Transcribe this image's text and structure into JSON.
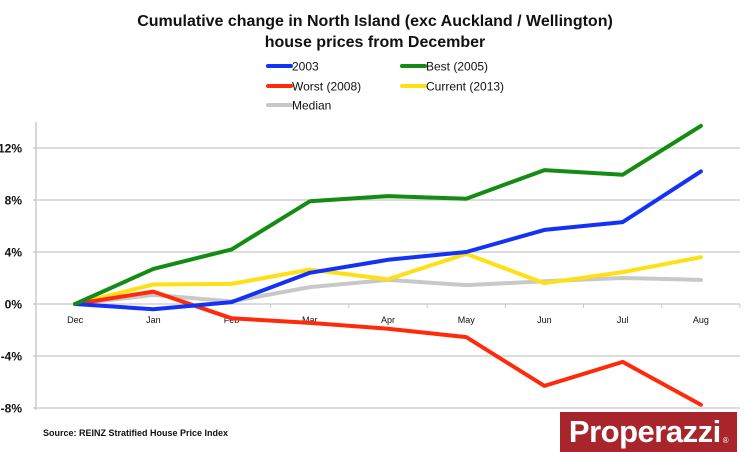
{
  "chart_data": {
    "type": "line",
    "title": [
      "Cumulative change in North Island (exc Auckland / Wellington)",
      "house prices from December"
    ],
    "xlabel": "",
    "ylabel": "",
    "categories": [
      "Dec",
      "Jan",
      "Feb",
      "Mar",
      "Apr",
      "May",
      "Jun",
      "Jul",
      "Aug"
    ],
    "ylim": [
      -8,
      14
    ],
    "yticks": [
      -8,
      -4,
      0,
      4,
      8,
      12
    ],
    "ytick_labels": [
      "-8%",
      "-4%",
      "0%",
      "4%",
      "8%",
      "12%"
    ],
    "grid": true,
    "legend_position": "top-center",
    "series": [
      {
        "name": "2003",
        "color": "#1432f5",
        "values": [
          0,
          -0.4,
          0.15,
          2.4,
          3.4,
          4.0,
          5.7,
          6.3,
          10.2
        ]
      },
      {
        "name": "Best (2005)",
        "color": "#148c14",
        "values": [
          0,
          2.7,
          4.2,
          7.9,
          8.3,
          8.1,
          10.3,
          9.95,
          13.7
        ]
      },
      {
        "name": "Worst (2008)",
        "color": "#ff2a0a",
        "values": [
          0,
          0.95,
          -1.1,
          -1.45,
          -1.9,
          -2.55,
          -6.3,
          -4.45,
          -7.75
        ]
      },
      {
        "name": "Current (2013)",
        "color": "#ffe014",
        "values": [
          0,
          1.5,
          1.55,
          2.65,
          1.9,
          3.85,
          1.6,
          2.45,
          3.6
        ]
      },
      {
        "name": "Median",
        "color": "#c8c8c8",
        "values": [
          0,
          0.7,
          0.2,
          1.3,
          1.85,
          1.45,
          1.75,
          2.0,
          1.85
        ]
      }
    ],
    "source": "Source: REINZ Stratified House Price Index"
  },
  "branding": {
    "logo_text": "Properazzi",
    "logo_mark": "®",
    "logo_color": "#a8252b"
  }
}
